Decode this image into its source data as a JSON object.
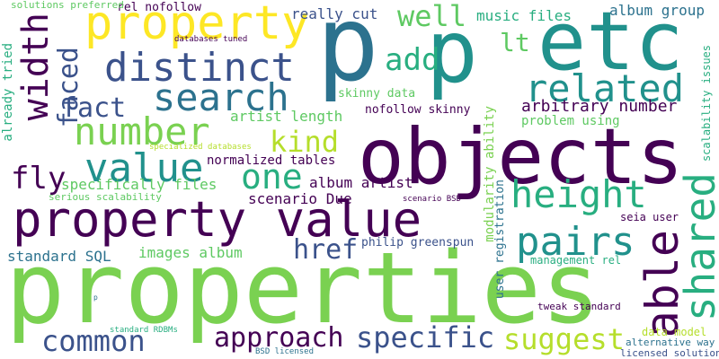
{
  "palette": {
    "dark_purple": "#440154",
    "indigo": "#3b528b",
    "teal_blue": "#2c728e",
    "teal": "#21918c",
    "green": "#28ae80",
    "light_green": "#5ec962",
    "lime": "#7ad151",
    "yellow": "#fde725",
    "yellow_green": "#b5de2b"
  },
  "words": [
    {
      "text": "properties",
      "color": "#7ad151"
    },
    {
      "text": "objects",
      "color": "#440154"
    },
    {
      "text": "property value",
      "color": "#440154"
    },
    {
      "text": "p",
      "color": "#2c728e"
    },
    {
      "text": "p",
      "color": "#21918c"
    },
    {
      "text": "etc",
      "color": "#21918c"
    },
    {
      "text": "property",
      "color": "#fde725"
    },
    {
      "text": "distinct",
      "color": "#3b528b"
    },
    {
      "text": "search",
      "color": "#2c728e"
    },
    {
      "text": "related",
      "color": "#21918c"
    },
    {
      "text": "number",
      "color": "#7ad151"
    },
    {
      "text": "value",
      "color": "#21918c"
    },
    {
      "text": "height",
      "color": "#28ae80"
    },
    {
      "text": "pairs",
      "color": "#21918c"
    },
    {
      "text": "one",
      "color": "#28ae80"
    },
    {
      "text": "shared",
      "color": "#28ae80"
    },
    {
      "text": "able",
      "color": "#440154"
    },
    {
      "text": "width",
      "color": "#440154"
    },
    {
      "text": "common",
      "color": "#3b528b"
    },
    {
      "text": "approach",
      "color": "#440154"
    },
    {
      "text": "specific",
      "color": "#3b528b"
    },
    {
      "text": "suggest",
      "color": "#b5de2b"
    },
    {
      "text": "add",
      "color": "#28ae80"
    },
    {
      "text": "well",
      "color": "#5ec962"
    },
    {
      "text": "fact",
      "color": "#3b528b"
    },
    {
      "text": "kind",
      "color": "#b5de2b"
    },
    {
      "text": "fly",
      "color": "#440154"
    },
    {
      "text": "href",
      "color": "#3b528b"
    },
    {
      "text": "faced",
      "color": "#3b528b"
    },
    {
      "text": "lt",
      "color": "#5ec962"
    },
    {
      "text": "arbitrary number",
      "color": "#440154"
    },
    {
      "text": "artist length",
      "color": "#5ec962"
    },
    {
      "text": "normalized tables",
      "color": "#440154"
    },
    {
      "text": "specifically files",
      "color": "#5ec962"
    },
    {
      "text": "scenario Due",
      "color": "#440154"
    },
    {
      "text": "album artist",
      "color": "#440154"
    },
    {
      "text": "images album",
      "color": "#5ec962"
    },
    {
      "text": "standard SQL",
      "color": "#2c728e"
    },
    {
      "text": "philip greenspun",
      "color": "#3b528b"
    },
    {
      "text": "music files",
      "color": "#28ae80"
    },
    {
      "text": "album group",
      "color": "#2c728e"
    },
    {
      "text": "really cut",
      "color": "#3b528b"
    },
    {
      "text": "rel nofollow",
      "color": "#440154"
    },
    {
      "text": "skinny data",
      "color": "#5ec962"
    },
    {
      "text": "nofollow skinny",
      "color": "#440154"
    },
    {
      "text": "problem using",
      "color": "#5ec962"
    },
    {
      "text": "modularity ability",
      "color": "#7ad151"
    },
    {
      "text": "user registration",
      "color": "#2c728e"
    },
    {
      "text": "scalability issues",
      "color": "#28ae80"
    },
    {
      "text": "already tried",
      "color": "#28ae80"
    },
    {
      "text": "seia user",
      "color": "#440154"
    },
    {
      "text": "management rel",
      "color": "#28ae80"
    },
    {
      "text": "tweak standard",
      "color": "#440154"
    },
    {
      "text": "data model",
      "color": "#b5de2b"
    },
    {
      "text": "alternative way",
      "color": "#2c728e"
    },
    {
      "text": "licensed solutions",
      "color": "#3b528b"
    },
    {
      "text": "solutions preferred",
      "color": "#5ec962"
    },
    {
      "text": "databases tuned",
      "color": "#440154"
    },
    {
      "text": "specialized databases",
      "color": "#b5de2b"
    },
    {
      "text": "serious scalability",
      "color": "#5ec962"
    },
    {
      "text": "scenario BSD",
      "color": "#440154"
    },
    {
      "text": "standard RDBMs",
      "color": "#28ae80"
    },
    {
      "text": "BSD licensed",
      "color": "#2c728e"
    },
    {
      "text": "p",
      "color": "#2c728e"
    }
  ]
}
